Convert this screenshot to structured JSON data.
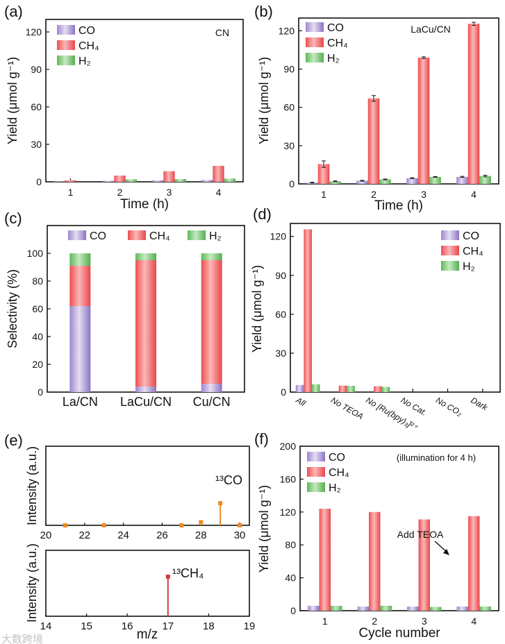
{
  "colors": {
    "CO": "#b4a2d8",
    "CH4": "#f26a6c",
    "H2": "#7dc97a",
    "ms_co": "#f08a24",
    "ms_ch4": "#d33b46"
  },
  "watermark": "大数跨境",
  "chart_data": [
    {
      "panel": "(a)",
      "type": "bar",
      "title": "CN",
      "xlabel": "Time (h)",
      "ylabel": "Yield (μmol g⁻¹)",
      "ylim": [
        0,
        130
      ],
      "yticks": [
        "0",
        "30",
        "60",
        "90",
        "120"
      ],
      "categories": [
        "1",
        "2",
        "3",
        "4"
      ],
      "series": [
        {
          "name": "CO",
          "values": [
            0.3,
            0.8,
            1.2,
            1.5
          ]
        },
        {
          "name": "CH₄",
          "values": [
            1.2,
            5.0,
            8.5,
            12.8
          ]
        },
        {
          "name": "H₂",
          "values": [
            0.0,
            2.0,
            2.2,
            2.6
          ]
        }
      ],
      "legend": "top-left"
    },
    {
      "panel": "(b)",
      "type": "bar",
      "title": "LaCu/CN",
      "xlabel": "Time (h)",
      "ylabel": "Yield (μmol g⁻¹)",
      "ylim": [
        0,
        130
      ],
      "yticks": [
        "0",
        "30",
        "60",
        "90",
        "120"
      ],
      "categories": [
        "1",
        "2",
        "3",
        "4"
      ],
      "series": [
        {
          "name": "CO",
          "values": [
            1.0,
            2.5,
            4.5,
            5.5
          ],
          "errors": [
            0.3,
            0.3,
            0.3,
            0.4
          ]
        },
        {
          "name": "CH₄",
          "values": [
            15.5,
            67.0,
            99.0,
            125.5
          ],
          "errors": [
            2.5,
            2.2,
            0.6,
            1.2
          ]
        },
        {
          "name": "H₂",
          "values": [
            2.0,
            3.5,
            5.5,
            6.2
          ],
          "errors": [
            0.3,
            0.3,
            0.3,
            0.6
          ]
        }
      ],
      "legend": "top-left"
    },
    {
      "panel": "(c)",
      "type": "bar",
      "stacked": true,
      "title": "",
      "xlabel": "",
      "ylabel": "Selectivity (%)",
      "ylim": [
        0,
        120
      ],
      "yticks": [
        "0",
        "20",
        "40",
        "60",
        "80",
        "100"
      ],
      "categories": [
        "La/CN",
        "LaCu/CN",
        "Cu/CN"
      ],
      "series": [
        {
          "name": "CO",
          "values": [
            62,
            4,
            6
          ]
        },
        {
          "name": "CH₄",
          "values": [
            29,
            91,
            89
          ]
        },
        {
          "name": "H₂",
          "values": [
            9,
            5,
            5
          ]
        }
      ],
      "legend": "top"
    },
    {
      "panel": "(d)",
      "type": "bar",
      "title": "",
      "xlabel": "",
      "ylabel": "Yield (μmol g⁻¹)",
      "ylim": [
        0,
        130
      ],
      "yticks": [
        "0",
        "30",
        "60",
        "90",
        "120"
      ],
      "categories": [
        "All",
        "No TEOA",
        "No [Ru(bpy)₃]²⁺",
        "No Cat.",
        "No CO₂",
        "Dark"
      ],
      "series": [
        {
          "name": "CO",
          "values": [
            5.5,
            0,
            0,
            0,
            0,
            0
          ]
        },
        {
          "name": "CH₄",
          "values": [
            125.5,
            5.0,
            4.5,
            0,
            0,
            0
          ]
        },
        {
          "name": "H₂",
          "values": [
            6.0,
            4.8,
            4.0,
            0,
            0,
            0
          ]
        }
      ],
      "legend": "top-right"
    },
    {
      "panel": "(e)",
      "type": "stem",
      "title": "",
      "xlabel": "",
      "ylabel": "Intensity (a.u.)",
      "xlim": [
        20,
        30.5
      ],
      "ylim": [
        0,
        1
      ],
      "xticks": [
        "20",
        "22",
        "24",
        "26",
        "28",
        "30"
      ],
      "x": [
        21,
        23,
        27,
        28,
        29,
        30
      ],
      "y": [
        0.0,
        0.0,
        0.0,
        0.04,
        0.28,
        0.0
      ],
      "annotation": "¹³CO"
    },
    {
      "panel": "",
      "type": "stem",
      "title": "",
      "xlabel": "m/z",
      "ylabel": "Intensity (a.u.)",
      "xlim": [
        14,
        19
      ],
      "ylim": [
        0,
        1
      ],
      "xticks": [
        "14",
        "15",
        "16",
        "17",
        "18",
        "19"
      ],
      "x": [
        17
      ],
      "y": [
        0.6
      ],
      "annotation": "¹³CH₄"
    },
    {
      "panel": "(f)",
      "type": "bar",
      "title": "(illumination for 4 h)",
      "xlabel": "Cycle number",
      "ylabel": "Yield (μmol g⁻¹)",
      "ylim": [
        0,
        200
      ],
      "yticks": [
        "0",
        "40",
        "80",
        "120",
        "160",
        "200"
      ],
      "categories": [
        "1",
        "2",
        "3",
        "4"
      ],
      "series": [
        {
          "name": "CO",
          "values": [
            6,
            5,
            5,
            5
          ]
        },
        {
          "name": "CH₄",
          "values": [
            124,
            120,
            111,
            115
          ]
        },
        {
          "name": "H₂",
          "values": [
            6,
            6,
            4.5,
            5
          ]
        }
      ],
      "legend": "top-left",
      "annotation": "Add TEOA"
    }
  ]
}
